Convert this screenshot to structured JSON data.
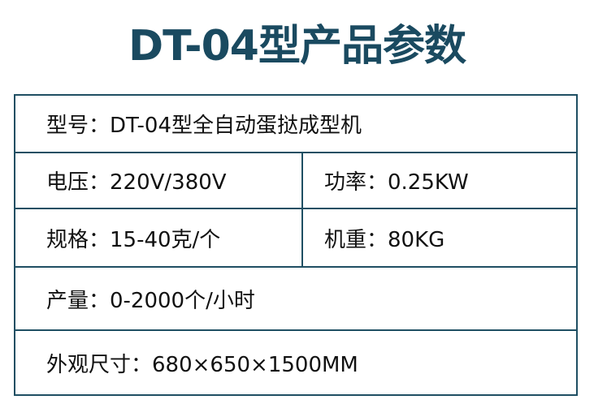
{
  "title": "DT-04型产品参数",
  "accent_color": "#1a4a60",
  "rows": [
    {
      "cells": [
        "型号：DT-04型全自动蛋挞成型机"
      ]
    },
    {
      "cells": [
        "电压：220V/380V",
        "功率：0.25KW"
      ]
    },
    {
      "cells": [
        "规格：15-40克/个",
        "机重：80KG"
      ]
    },
    {
      "cells": [
        "产量：0-2000个/小时"
      ]
    },
    {
      "cells": [
        "外观尺寸：680×650×1500MM"
      ]
    }
  ]
}
